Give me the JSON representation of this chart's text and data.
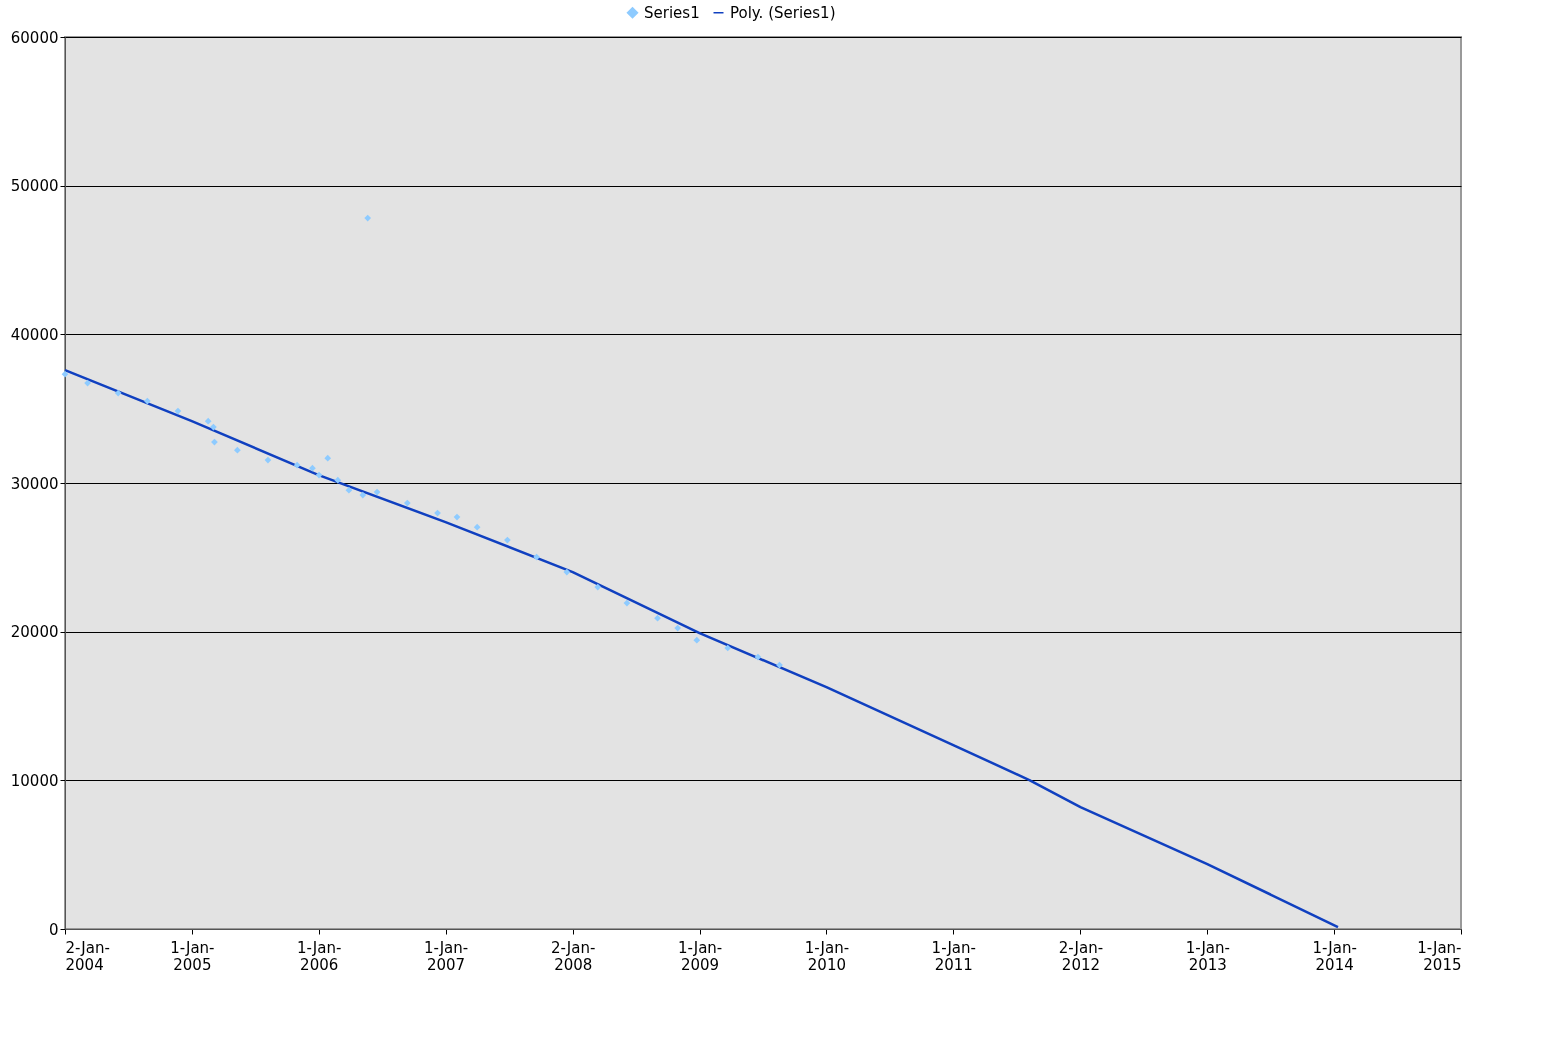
{
  "chart_data": {
    "type": "scatter",
    "series": [
      {
        "name": "Series1",
        "color": "#8ecbff",
        "marker": "diamond",
        "x": [
          "2004-01-02",
          "2004-03-07",
          "2004-06-03",
          "2004-08-26",
          "2004-11-22",
          "2005-02-17",
          "2005-03-04",
          "2005-03-07",
          "2005-05-12",
          "2005-08-08",
          "2005-10-31",
          "2005-12-14",
          "2006-01-02",
          "2006-01-27",
          "2006-02-25",
          "2006-03-29",
          "2006-05-08",
          "2006-05-22",
          "2006-06-18",
          "2006-09-13",
          "2006-12-09",
          "2007-02-03",
          "2007-04-02",
          "2007-06-28",
          "2007-09-20",
          "2007-12-16",
          "2008-03-14",
          "2008-06-06",
          "2008-09-02",
          "2008-10-30",
          "2008-12-24",
          "2009-03-23",
          "2009-06-18",
          "2009-08-19"
        ],
        "values": [
          37320,
          36720,
          36050,
          35510,
          34840,
          34160,
          33760,
          32750,
          32210,
          31540,
          31200,
          31000,
          30530,
          31670,
          30190,
          29520,
          29190,
          47820,
          29390,
          28650,
          27980,
          27710,
          27030,
          26160,
          25020,
          24010,
          23000,
          21920,
          20910,
          20240,
          19430,
          18900,
          18290,
          17750
        ]
      },
      {
        "name": "Poly. (Series1)",
        "type": "line",
        "color": "#1040c0",
        "line_style": "solid",
        "marker": "none",
        "x": [
          "2004-01-02",
          "2005-01-01",
          "2006-01-01",
          "2007-01-01",
          "2008-01-02",
          "2009-01-01",
          "2010-01-01",
          "2011-01-01",
          "2011-08-08",
          "2012-01-02",
          "2013-01-01",
          "2014-01-12"
        ],
        "values": [
          37590,
          34160,
          30530,
          27370,
          24010,
          19900,
          16270,
          12370,
          10020,
          8200,
          4370,
          130
        ]
      }
    ],
    "xlim": [
      "2004-01-02",
      "2015-01-01"
    ],
    "xticks": [
      {
        "value": "2004-01-02",
        "label": "2-Jan-\n2004"
      },
      {
        "value": "2005-01-01",
        "label": "1-Jan-\n2005"
      },
      {
        "value": "2006-01-01",
        "label": "1-Jan-\n2006"
      },
      {
        "value": "2007-01-01",
        "label": "1-Jan-\n2007"
      },
      {
        "value": "2008-01-02",
        "label": "2-Jan-\n2008"
      },
      {
        "value": "2009-01-01",
        "label": "1-Jan-\n2009"
      },
      {
        "value": "2010-01-01",
        "label": "1-Jan-\n2010"
      },
      {
        "value": "2011-01-01",
        "label": "1-Jan-\n2011"
      },
      {
        "value": "2012-01-02",
        "label": "2-Jan-\n2012"
      },
      {
        "value": "2013-01-01",
        "label": "1-Jan-\n2013"
      },
      {
        "value": "2014-01-01",
        "label": "1-Jan-\n2014"
      },
      {
        "value": "2015-01-01",
        "label": "1-Jan-\n2015"
      }
    ],
    "ylim": [
      0,
      60000
    ],
    "yticks": [
      0,
      10000,
      20000,
      30000,
      40000,
      50000,
      60000
    ],
    "grid": "y",
    "legend": "top"
  }
}
